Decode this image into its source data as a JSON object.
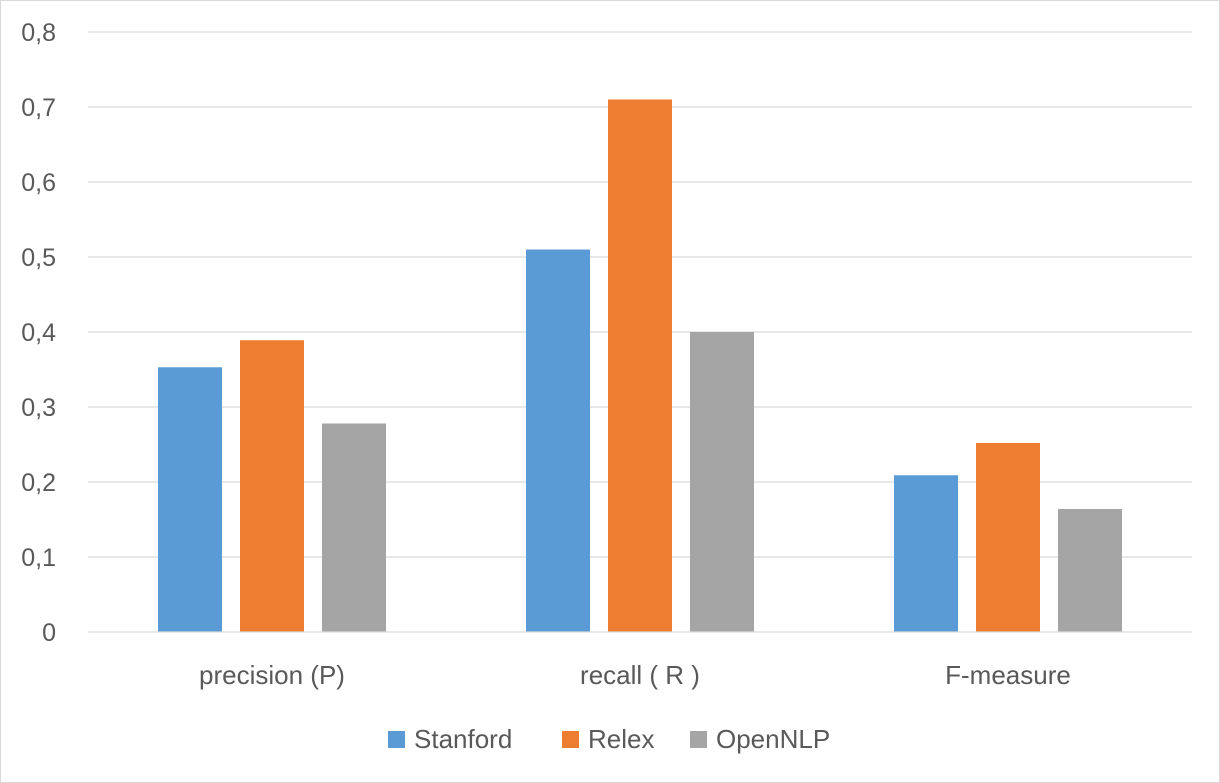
{
  "chart_data": {
    "type": "bar",
    "categories": [
      "precision (P)",
      "recall ( R )",
      "F-measure"
    ],
    "series": [
      {
        "name": "Stanford",
        "color": "#5b9bd5",
        "values": [
          0.353,
          0.51,
          0.209
        ]
      },
      {
        "name": "Relex",
        "color": "#ed7d31",
        "values": [
          0.389,
          0.71,
          0.252
        ]
      },
      {
        "name": "OpenNLP",
        "color": "#a5a5a5",
        "values": [
          0.278,
          0.4,
          0.164
        ]
      }
    ],
    "ylim": [
      0,
      0.8
    ],
    "yticks": [
      "0",
      "0,1",
      "0,2",
      "0,3",
      "0,4",
      "0,5",
      "0,6",
      "0,7",
      "0,8"
    ],
    "grid": true,
    "legend_position": "bottom",
    "title": "",
    "xlabel": "",
    "ylabel": ""
  }
}
